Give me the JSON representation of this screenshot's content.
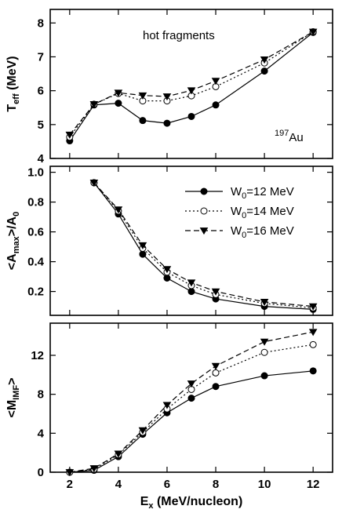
{
  "figure": {
    "xlabel_main": "E",
    "xlabel_sub": "x",
    "xlabel_rest": " (MeV/nucleon)"
  },
  "legend": [
    {
      "prefix": "W",
      "sub": "0",
      "suffix": "=12 MeV",
      "series": 0
    },
    {
      "prefix": "W",
      "sub": "0",
      "suffix": "=14 MeV",
      "series": 1
    },
    {
      "prefix": "W",
      "sub": "0",
      "suffix": "=16 MeV",
      "series": 2
    }
  ],
  "style": {
    "series_colors": [
      "#000000",
      "#000000",
      "#000000"
    ],
    "series_dash": [
      "",
      "2,3",
      "7,4"
    ],
    "series_markers": [
      "filled-circle",
      "open-circle",
      "filled-triangle-down"
    ]
  },
  "chart_data": [
    {
      "type": "line",
      "ylabel": {
        "main": "T",
        "sub": "eff",
        "rest": " (MeV)"
      },
      "annotations": {
        "label": "hot fragments",
        "isotope_mass": "197",
        "isotope_symbol": "Au"
      },
      "xlim": [
        1.2,
        12.8
      ],
      "ylim": [
        4,
        8.4
      ],
      "x_ticks": [
        "2",
        "4",
        "6",
        "8",
        "10",
        "12"
      ],
      "y_ticks": [
        "4",
        "5",
        "6",
        "7",
        "8"
      ],
      "show_x_tick_labels": false,
      "series": [
        {
          "x": [
            2,
            3,
            4,
            5,
            6,
            7,
            8,
            10,
            12
          ],
          "values": [
            4.52,
            5.58,
            5.63,
            5.12,
            5.04,
            5.24,
            5.58,
            6.58,
            7.72
          ]
        },
        {
          "x": [
            2,
            3,
            4,
            5,
            6,
            7,
            8,
            10,
            12
          ],
          "values": [
            4.63,
            5.6,
            5.92,
            5.7,
            5.7,
            5.85,
            6.12,
            6.82,
            7.74
          ]
        },
        {
          "x": [
            2,
            3,
            4,
            5,
            6,
            7,
            8,
            10,
            12
          ],
          "values": [
            4.7,
            5.6,
            5.94,
            5.86,
            5.83,
            6.01,
            6.29,
            6.92,
            7.74
          ]
        }
      ]
    },
    {
      "type": "line",
      "ylabel": {
        "main": "<A",
        "sub": "max",
        "rest": ">/A",
        "sub2": "0"
      },
      "xlim": [
        1.2,
        12.8
      ],
      "ylim": [
        0.04,
        1.04
      ],
      "x_ticks": [
        "2",
        "4",
        "6",
        "8",
        "10",
        "12"
      ],
      "y_ticks": [
        "0.2",
        "0.4",
        "0.6",
        "0.8",
        "1.0"
      ],
      "show_x_tick_labels": false,
      "series": [
        {
          "x": [
            3,
            4,
            5,
            6,
            7,
            8,
            10,
            12
          ],
          "values": [
            0.93,
            0.72,
            0.45,
            0.29,
            0.2,
            0.15,
            0.1,
            0.08
          ]
        },
        {
          "x": [
            3,
            4,
            5,
            6,
            7,
            8,
            10,
            12
          ],
          "values": [
            0.93,
            0.74,
            0.49,
            0.33,
            0.24,
            0.18,
            0.12,
            0.09
          ]
        },
        {
          "x": [
            3,
            4,
            5,
            6,
            7,
            8,
            10,
            12
          ],
          "values": [
            0.93,
            0.75,
            0.51,
            0.35,
            0.26,
            0.2,
            0.13,
            0.1
          ]
        }
      ]
    },
    {
      "type": "line",
      "ylabel": {
        "main": "<M",
        "sub": "IMF",
        "rest": ">"
      },
      "xlim": [
        1.2,
        12.8
      ],
      "ylim": [
        0,
        15.3
      ],
      "x_ticks": [
        "2",
        "4",
        "6",
        "8",
        "10",
        "12"
      ],
      "y_ticks": [
        "0",
        "4",
        "8",
        "12"
      ],
      "show_x_tick_labels": true,
      "series": [
        {
          "x": [
            2,
            3,
            4,
            5,
            6,
            7,
            8,
            10,
            12
          ],
          "values": [
            0.0,
            0.2,
            1.6,
            3.9,
            6.1,
            7.6,
            8.8,
            9.9,
            10.4
          ]
        },
        {
          "x": [
            2,
            3,
            4,
            5,
            6,
            7,
            8,
            10,
            12
          ],
          "values": [
            0.0,
            0.3,
            1.8,
            4.1,
            6.5,
            8.5,
            10.2,
            12.3,
            13.1
          ]
        },
        {
          "x": [
            2,
            3,
            4,
            5,
            6,
            7,
            8,
            10,
            12
          ],
          "values": [
            0.0,
            0.4,
            1.9,
            4.3,
            6.9,
            9.1,
            10.9,
            13.4,
            14.4
          ]
        }
      ]
    }
  ]
}
